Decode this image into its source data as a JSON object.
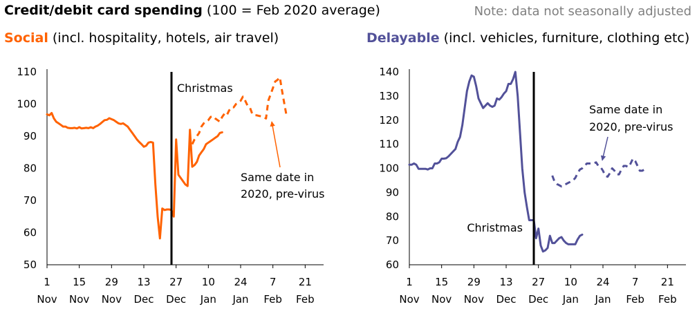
{
  "header": {
    "title_bold": "Credit/debit card spending",
    "title_rest": " (100 = Feb 2020 average)",
    "note": "Note: data not seasonally adjusted"
  },
  "colors": {
    "social": "#FF6200",
    "delayable": "#525199",
    "axis": "#000000"
  },
  "chart_data": [
    {
      "type": "line",
      "title_bold": "Social",
      "title_rest": " (incl. hospitality, hotels, air travel)",
      "x_ticks": [
        {
          "day": 1,
          "day_label": "1",
          "month": "Nov"
        },
        {
          "day": 15,
          "day_label": "15",
          "month": "Nov"
        },
        {
          "day": 29,
          "day_label": "29",
          "month": "Nov"
        },
        {
          "day": 43,
          "day_label": "13",
          "month": "Dec"
        },
        {
          "day": 57,
          "day_label": "27",
          "month": "Dec"
        },
        {
          "day": 71,
          "day_label": "10",
          "month": "Jan"
        },
        {
          "day": 85,
          "day_label": "24",
          "month": "Jan"
        },
        {
          "day": 99,
          "day_label": "7",
          "month": "Feb"
        },
        {
          "day": 113,
          "day_label": "21",
          "month": "Feb"
        }
      ],
      "xlim": [
        1,
        121
      ],
      "ylim": [
        50,
        110
      ],
      "y_ticks": [
        50,
        60,
        70,
        80,
        90,
        100,
        110
      ],
      "christmas_day": 55,
      "christmas_label": "Christmas",
      "annotation": [
        "Same date in",
        "2020, pre-virus"
      ],
      "series": [
        {
          "style": "solid",
          "points": [
            [
              1,
              96.8
            ],
            [
              2,
              96.5
            ],
            [
              3,
              97.2
            ],
            [
              4,
              95.5
            ],
            [
              5,
              94.5
            ],
            [
              6,
              94
            ],
            [
              7,
              93.5
            ],
            [
              8,
              93
            ],
            [
              9,
              93
            ],
            [
              10,
              92.6
            ],
            [
              11,
              92.5
            ],
            [
              12,
              92.5
            ],
            [
              13,
              92.6
            ],
            [
              14,
              92.4
            ],
            [
              15,
              92.8
            ],
            [
              16,
              92.4
            ],
            [
              17,
              92.5
            ],
            [
              18,
              92.6
            ],
            [
              19,
              92.5
            ],
            [
              20,
              92.8
            ],
            [
              21,
              92.5
            ],
            [
              22,
              93
            ],
            [
              23,
              93.3
            ],
            [
              24,
              93.8
            ],
            [
              25,
              94.4
            ],
            [
              26,
              95
            ],
            [
              27,
              95.1
            ],
            [
              28,
              95.6
            ],
            [
              29,
              95.3
            ],
            [
              30,
              95
            ],
            [
              31,
              94.5
            ],
            [
              32,
              94
            ],
            [
              33,
              93.8
            ],
            [
              34,
              94
            ],
            [
              35,
              93.5
            ],
            [
              36,
              93
            ],
            [
              37,
              92
            ],
            [
              38,
              91
            ],
            [
              39,
              90
            ],
            [
              40,
              89
            ],
            [
              41,
              88.2
            ],
            [
              42,
              87.5
            ],
            [
              43,
              86.7
            ],
            [
              44,
              87
            ],
            [
              45,
              88
            ],
            [
              46,
              88.2
            ],
            [
              47,
              88
            ],
            [
              48,
              75
            ],
            [
              49,
              65
            ],
            [
              50,
              58.2
            ],
            [
              51,
              67.5
            ],
            [
              52,
              67
            ],
            [
              53,
              67.2
            ],
            [
              54,
              67.2
            ],
            [
              55,
              67
            ],
            [
              56,
              65
            ],
            [
              57,
              89
            ],
            [
              58,
              78
            ],
            [
              59,
              77
            ],
            [
              60,
              76
            ],
            [
              61,
              75
            ],
            [
              62,
              74.5
            ],
            [
              63,
              92
            ],
            [
              64,
              80.5
            ],
            [
              65,
              81
            ],
            [
              66,
              82
            ],
            [
              67,
              84
            ],
            [
              68,
              85
            ],
            [
              69,
              86
            ],
            [
              70,
              87.5
            ],
            [
              71,
              88
            ],
            [
              72,
              88.5
            ],
            [
              73,
              89
            ],
            [
              74,
              89.5
            ],
            [
              75,
              90
            ],
            [
              76,
              91
            ],
            [
              77,
              91.2
            ]
          ]
        },
        {
          "style": "dashed",
          "points": [
            [
              64,
              87.5
            ],
            [
              65,
              89
            ],
            [
              66,
              90
            ],
            [
              67,
              91
            ],
            [
              68,
              93
            ],
            [
              69,
              94
            ],
            [
              70,
              94.5
            ],
            [
              71,
              95
            ],
            [
              72,
              96
            ],
            [
              73,
              96.2
            ],
            [
              74,
              95.5
            ],
            [
              75,
              95
            ],
            [
              76,
              94.5
            ],
            [
              77,
              96
            ],
            [
              78,
              97
            ],
            [
              79,
              96.5
            ],
            [
              80,
              98
            ],
            [
              81,
              99
            ],
            [
              82,
              99
            ],
            [
              83,
              100
            ],
            [
              84,
              100.5
            ],
            [
              85,
              101
            ],
            [
              86,
              102.3
            ],
            [
              87,
              101
            ],
            [
              88,
              99.5
            ],
            [
              89,
              99
            ],
            [
              90,
              97
            ],
            [
              91,
              96.5
            ],
            [
              92,
              96.5
            ],
            [
              93,
              96.3
            ],
            [
              94,
              96.2
            ],
            [
              95,
              96
            ],
            [
              96,
              95.5
            ],
            [
              97,
              101
            ],
            [
              98,
              103
            ],
            [
              99,
              105
            ],
            [
              100,
              107
            ],
            [
              101,
              107.5
            ],
            [
              102,
              108.3
            ],
            [
              103,
              104
            ],
            [
              104,
              100
            ],
            [
              105,
              96
            ]
          ]
        }
      ]
    },
    {
      "type": "line",
      "title_bold": "Delayable",
      "title_rest": " (incl. vehicles, furniture, clothing etc)",
      "x_ticks": [
        {
          "day": 1,
          "day_label": "1",
          "month": "Nov"
        },
        {
          "day": 15,
          "day_label": "15",
          "month": "Nov"
        },
        {
          "day": 29,
          "day_label": "29",
          "month": "Nov"
        },
        {
          "day": 43,
          "day_label": "13",
          "month": "Dec"
        },
        {
          "day": 57,
          "day_label": "27",
          "month": "Dec"
        },
        {
          "day": 71,
          "day_label": "10",
          "month": "Jan"
        },
        {
          "day": 85,
          "day_label": "24",
          "month": "Jan"
        },
        {
          "day": 99,
          "day_label": "7",
          "month": "Feb"
        },
        {
          "day": 113,
          "day_label": "21",
          "month": "Feb"
        }
      ],
      "xlim": [
        1,
        121
      ],
      "ylim": [
        60,
        140
      ],
      "y_ticks": [
        60,
        70,
        80,
        90,
        100,
        110,
        120,
        130,
        140
      ],
      "christmas_day": 55,
      "christmas_label": "Christmas",
      "annotation": [
        "Same date in",
        "2020, pre-virus"
      ],
      "series": [
        {
          "style": "solid",
          "points": [
            [
              1,
              101.5
            ],
            [
              2,
              101.5
            ],
            [
              3,
              102
            ],
            [
              4,
              101.5
            ],
            [
              5,
              99.8
            ],
            [
              6,
              99.8
            ],
            [
              7,
              99.8
            ],
            [
              8,
              99.8
            ],
            [
              9,
              99.5
            ],
            [
              10,
              100
            ],
            [
              11,
              100
            ],
            [
              12,
              102
            ],
            [
              13,
              102
            ],
            [
              14,
              102.5
            ],
            [
              15,
              104
            ],
            [
              16,
              104
            ],
            [
              17,
              104.2
            ],
            [
              18,
              105
            ],
            [
              19,
              106
            ],
            [
              20,
              107
            ],
            [
              21,
              108
            ],
            [
              22,
              111
            ],
            [
              23,
              113
            ],
            [
              24,
              118
            ],
            [
              25,
              125
            ],
            [
              26,
              132
            ],
            [
              27,
              136
            ],
            [
              28,
              138.5
            ],
            [
              29,
              138
            ],
            [
              30,
              134
            ],
            [
              31,
              129
            ],
            [
              32,
              127
            ],
            [
              33,
              125
            ],
            [
              34,
              126
            ],
            [
              35,
              127
            ],
            [
              36,
              126
            ],
            [
              37,
              125.5
            ],
            [
              38,
              126
            ],
            [
              39,
              129
            ],
            [
              40,
              128.5
            ],
            [
              41,
              129.5
            ],
            [
              42,
              131
            ],
            [
              43,
              132
            ],
            [
              44,
              135
            ],
            [
              45,
              135
            ],
            [
              46,
              137
            ],
            [
              47,
              140
            ],
            [
              48,
              130
            ],
            [
              49,
              115
            ],
            [
              50,
              100
            ],
            [
              51,
              90
            ],
            [
              52,
              84
            ],
            [
              53,
              78.5
            ],
            [
              54,
              78.5
            ],
            [
              55,
              78.5
            ],
            [
              56,
              71
            ],
            [
              57,
              75
            ],
            [
              58,
              68
            ],
            [
              59,
              65.5
            ],
            [
              60,
              66
            ],
            [
              61,
              67
            ],
            [
              62,
              72
            ],
            [
              63,
              69
            ],
            [
              64,
              69
            ],
            [
              65,
              70
            ],
            [
              66,
              71
            ],
            [
              67,
              71.5
            ],
            [
              68,
              70
            ],
            [
              69,
              69
            ],
            [
              70,
              68.5
            ],
            [
              71,
              68.5
            ],
            [
              72,
              68.5
            ],
            [
              73,
              68.5
            ],
            [
              74,
              70.5
            ],
            [
              75,
              72
            ],
            [
              76,
              72.5
            ]
          ]
        },
        {
          "style": "dashed",
          "points": [
            [
              63,
              97
            ],
            [
              64,
              94.5
            ],
            [
              65,
              93.5
            ],
            [
              66,
              93
            ],
            [
              67,
              92.5
            ],
            [
              68,
              93
            ],
            [
              69,
              93.5
            ],
            [
              70,
              94
            ],
            [
              71,
              94.5
            ],
            [
              72,
              95
            ],
            [
              73,
              96
            ],
            [
              74,
              98
            ],
            [
              75,
              99.5
            ],
            [
              76,
              100
            ],
            [
              77,
              101
            ],
            [
              78,
              102
            ],
            [
              79,
              102
            ],
            [
              80,
              102
            ],
            [
              81,
              102
            ],
            [
              82,
              102.5
            ],
            [
              83,
              101
            ],
            [
              84,
              100.5
            ],
            [
              85,
              99
            ],
            [
              86,
              97
            ],
            [
              87,
              96.5
            ],
            [
              88,
              98
            ],
            [
              89,
              100
            ],
            [
              90,
              99
            ],
            [
              91,
              97.5
            ],
            [
              92,
              97.5
            ],
            [
              93,
              99.5
            ],
            [
              94,
              101
            ],
            [
              95,
              101
            ],
            [
              96,
              100.5
            ],
            [
              97,
              102
            ],
            [
              98,
              104
            ],
            [
              99,
              103
            ],
            [
              100,
              101
            ],
            [
              101,
              99
            ],
            [
              102,
              99
            ],
            [
              103,
              99.5
            ]
          ]
        }
      ]
    }
  ]
}
